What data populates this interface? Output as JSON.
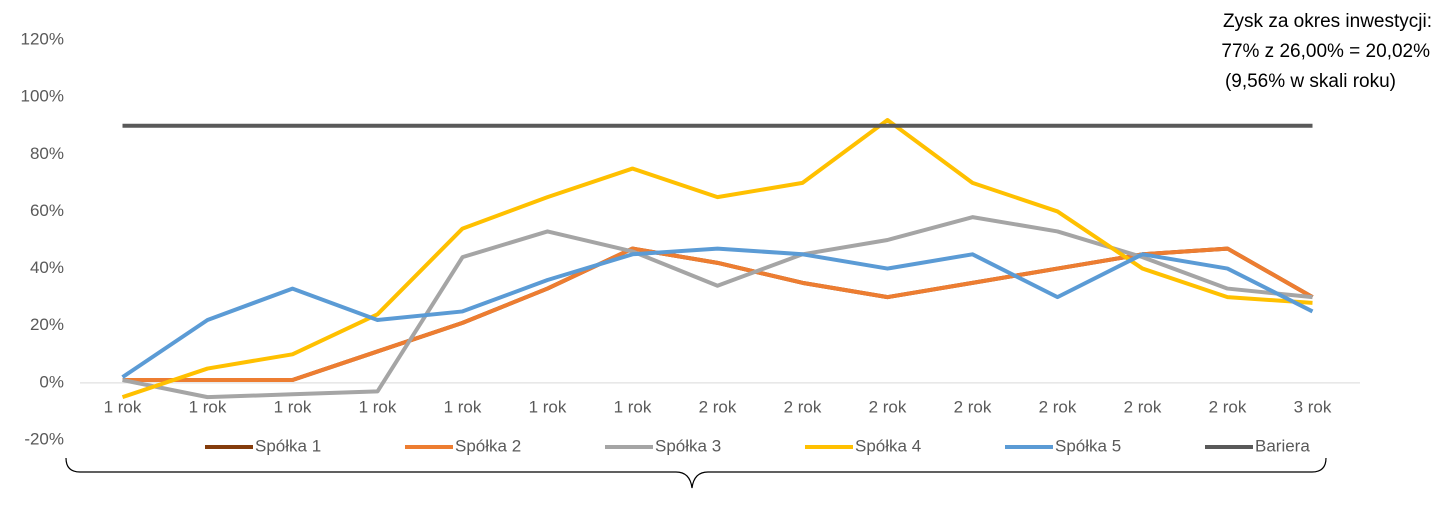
{
  "chart_data": {
    "type": "line",
    "categories": [
      "1 rok",
      "1 rok",
      "1 rok",
      "1 rok",
      "1 rok",
      "1 rok",
      "1 rok",
      "2 rok",
      "2 rok",
      "2 rok",
      "2 rok",
      "2 rok",
      "2 rok",
      "2 rok",
      "3 rok"
    ],
    "series": [
      {
        "name": "Spółka 1",
        "color": "#843c0c",
        "values": [
          1,
          1,
          1,
          11,
          21,
          33,
          47,
          42,
          35,
          30,
          35,
          40,
          45,
          47,
          30
        ]
      },
      {
        "name": "Spółka 2",
        "color": "#ed7d31",
        "values": [
          1,
          1,
          1,
          11,
          21,
          33,
          47,
          42,
          35,
          30,
          35,
          40,
          45,
          47,
          30
        ]
      },
      {
        "name": "Spółka 3",
        "color": "#a5a5a5",
        "values": [
          1,
          -5,
          -4,
          -3,
          44,
          53,
          46,
          34,
          45,
          50,
          58,
          53,
          44,
          33,
          30
        ]
      },
      {
        "name": "Spółka 4",
        "color": "#ffc000",
        "values": [
          -5,
          5,
          10,
          24,
          54,
          65,
          75,
          65,
          70,
          92,
          70,
          60,
          40,
          30,
          28
        ]
      },
      {
        "name": "Spółka 5",
        "color": "#5b9bd5",
        "values": [
          2,
          22,
          33,
          22,
          25,
          36,
          45,
          47,
          45,
          40,
          45,
          30,
          45,
          40,
          25
        ]
      },
      {
        "name": "Bariera",
        "color": "#595959",
        "values": [
          90,
          90,
          90,
          90,
          90,
          90,
          90,
          90,
          90,
          90,
          90,
          90,
          90,
          90,
          90
        ]
      }
    ],
    "ylim": [
      -20,
      120
    ],
    "yticks": [
      {
        "value": -20,
        "label": "-20%"
      },
      {
        "value": 0,
        "label": "0%"
      },
      {
        "value": 20,
        "label": "20%"
      },
      {
        "value": 40,
        "label": "40%"
      },
      {
        "value": 60,
        "label": "60%"
      },
      {
        "value": 80,
        "label": "80%"
      },
      {
        "value": 100,
        "label": "100%"
      },
      {
        "value": 120,
        "label": "120%"
      }
    ],
    "grid": false,
    "legend": "bottom",
    "annotations": [
      "Zysk za okres inwestycji:",
      "77% z 26,00% = 20,02%",
      "(9,56% w skali roku)"
    ]
  }
}
